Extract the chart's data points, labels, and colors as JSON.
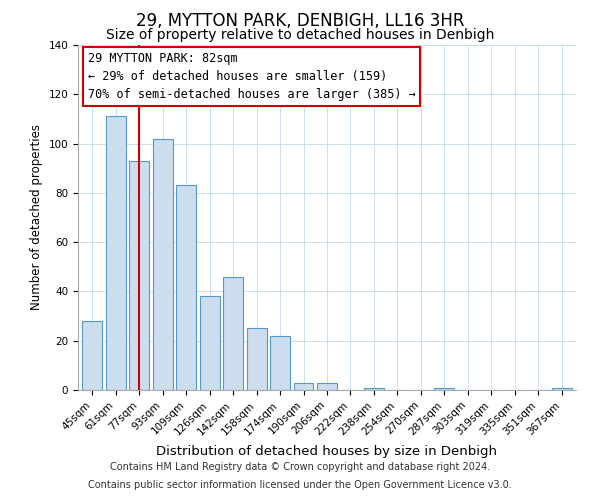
{
  "title": "29, MYTTON PARK, DENBIGH, LL16 3HR",
  "subtitle": "Size of property relative to detached houses in Denbigh",
  "xlabel": "Distribution of detached houses by size in Denbigh",
  "ylabel": "Number of detached properties",
  "categories": [
    "45sqm",
    "61sqm",
    "77sqm",
    "93sqm",
    "109sqm",
    "126sqm",
    "142sqm",
    "158sqm",
    "174sqm",
    "190sqm",
    "206sqm",
    "222sqm",
    "238sqm",
    "254sqm",
    "270sqm",
    "287sqm",
    "303sqm",
    "319sqm",
    "335sqm",
    "351sqm",
    "367sqm"
  ],
  "values": [
    28,
    111,
    93,
    102,
    83,
    38,
    46,
    25,
    22,
    3,
    3,
    0,
    1,
    0,
    0,
    1,
    0,
    0,
    0,
    0,
    1
  ],
  "bar_color": "#ccdded",
  "bar_edge_color": "#5599cc",
  "vline_x": 2,
  "vline_color": "#cc0000",
  "ylim": [
    0,
    140
  ],
  "yticks": [
    0,
    20,
    40,
    60,
    80,
    100,
    120,
    140
  ],
  "annotation_title": "29 MYTTON PARK: 82sqm",
  "annotation_line1": "← 29% of detached houses are smaller (159)",
  "annotation_line2": "70% of semi-detached houses are larger (385) →",
  "footer_line1": "Contains HM Land Registry data © Crown copyright and database right 2024.",
  "footer_line2": "Contains public sector information licensed under the Open Government Licence v3.0.",
  "background_color": "#ffffff",
  "title_fontsize": 12,
  "subtitle_fontsize": 10,
  "xlabel_fontsize": 9.5,
  "ylabel_fontsize": 8.5,
  "tick_fontsize": 7.5,
  "annotation_fontsize": 8.5,
  "footer_fontsize": 7
}
